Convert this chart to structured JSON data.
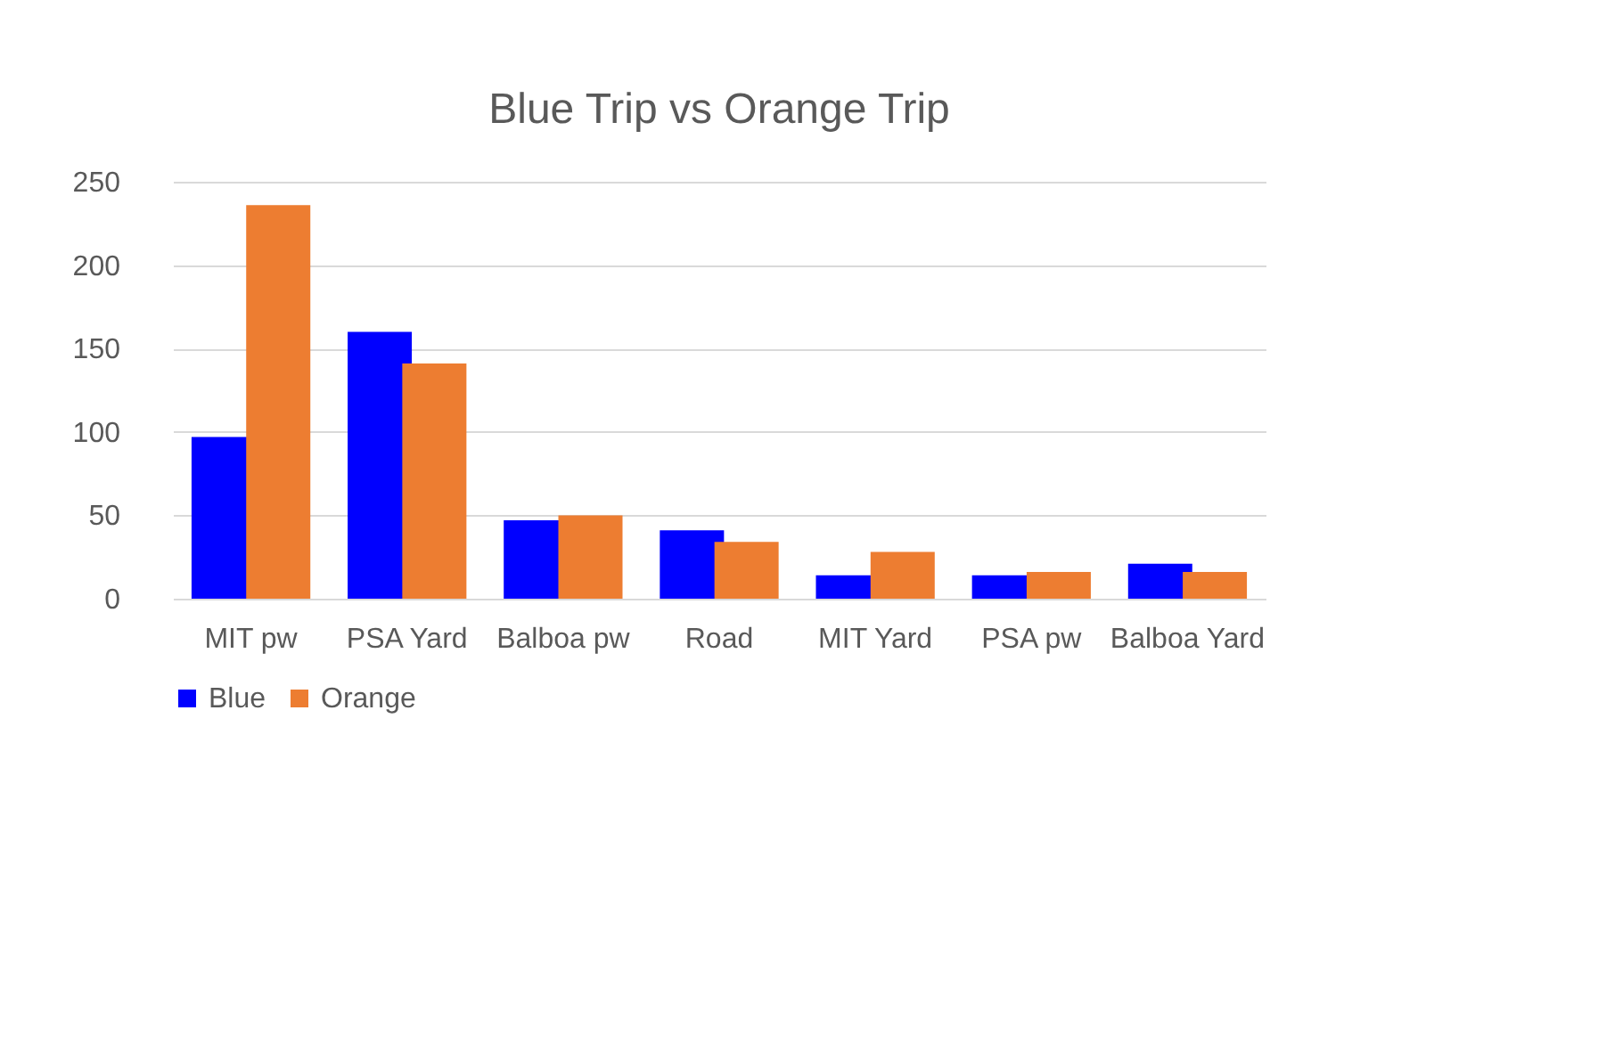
{
  "chart_data": {
    "type": "bar",
    "title": "Blue Trip vs Orange Trip",
    "categories": [
      "MIT pw",
      "PSA Yard",
      "Balboa pw",
      "Road",
      "MIT Yard",
      "PSA pw",
      "Balboa Yard"
    ],
    "series": [
      {
        "name": "Blue",
        "color": "#0000ff",
        "values": [
          97,
          160,
          47,
          41,
          14,
          14,
          21
        ]
      },
      {
        "name": "Orange",
        "color": "#ed7d31",
        "values": [
          236,
          141,
          50,
          34,
          28,
          16,
          16
        ]
      }
    ],
    "ylim": [
      0,
      250
    ],
    "yticks": [
      0,
      50,
      100,
      150,
      200,
      250
    ],
    "grid": "y",
    "legend": "bottom"
  }
}
